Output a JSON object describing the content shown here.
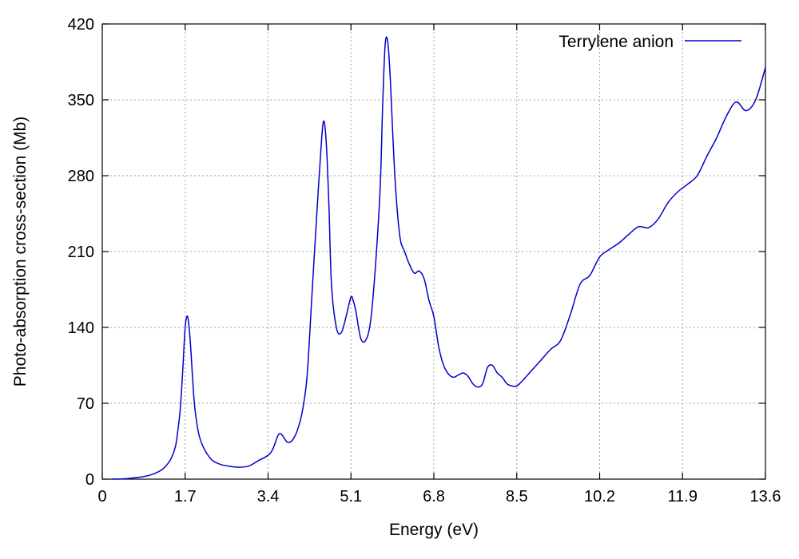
{
  "chart_data": {
    "type": "line",
    "title": "",
    "xlabel": "Energy (eV)",
    "ylabel": "Photo-absorption cross-section (Mb)",
    "xlim": [
      0,
      13.6
    ],
    "ylim": [
      0,
      420
    ],
    "xticks": [
      0,
      1.7,
      3.4,
      5.1,
      6.8,
      8.5,
      10.2,
      11.9,
      13.6
    ],
    "xtick_labels": [
      "0",
      "1.7",
      "3.4",
      "5.1",
      "6.8",
      "8.5",
      "10.2",
      "11.9",
      "13.6"
    ],
    "yticks": [
      0,
      70,
      140,
      210,
      280,
      350,
      420
    ],
    "ytick_labels": [
      "0",
      "70",
      "140",
      "210",
      "280",
      "350",
      "420"
    ],
    "grid": true,
    "legend_position": "top-right",
    "series": [
      {
        "name": "Terrylene anion",
        "color": "#0000cc",
        "x": [
          0.2,
          0.5,
          0.8,
          1.0,
          1.2,
          1.3,
          1.4,
          1.5,
          1.55,
          1.6,
          1.65,
          1.7,
          1.75,
          1.8,
          1.85,
          1.9,
          2.0,
          2.2,
          2.4,
          2.6,
          2.8,
          3.0,
          3.2,
          3.4,
          3.5,
          3.6,
          3.65,
          3.7,
          3.8,
          3.9,
          4.0,
          4.1,
          4.2,
          4.3,
          4.4,
          4.5,
          4.55,
          4.6,
          4.65,
          4.7,
          4.8,
          4.9,
          5.0,
          5.1,
          5.15,
          5.2,
          5.3,
          5.4,
          5.5,
          5.6,
          5.7,
          5.75,
          5.8,
          5.85,
          5.9,
          6.0,
          6.1,
          6.2,
          6.3,
          6.4,
          6.5,
          6.6,
          6.7,
          6.8,
          6.9,
          7.0,
          7.1,
          7.2,
          7.3,
          7.4,
          7.5,
          7.6,
          7.7,
          7.8,
          7.9,
          8.0,
          8.1,
          8.2,
          8.3,
          8.4,
          8.5,
          8.6,
          8.8,
          9.0,
          9.2,
          9.4,
          9.6,
          9.8,
          10.0,
          10.2,
          10.4,
          10.6,
          10.8,
          11.0,
          11.2,
          11.4,
          11.6,
          11.8,
          12.0,
          12.2,
          12.4,
          12.6,
          12.8,
          13.0,
          13.2,
          13.4,
          13.6
        ],
        "y": [
          0,
          0.5,
          2,
          4,
          8,
          12,
          18,
          30,
          45,
          65,
          100,
          140,
          150,
          130,
          95,
          65,
          38,
          20,
          14,
          12,
          11,
          12,
          17,
          22,
          28,
          40,
          42,
          40,
          34,
          36,
          45,
          62,
          95,
          170,
          245,
          315,
          330,
          305,
          250,
          180,
          140,
          135,
          150,
          168,
          164,
          155,
          130,
          128,
          145,
          195,
          270,
          345,
          400,
          405,
          375,
          280,
          225,
          210,
          198,
          190,
          192,
          185,
          165,
          150,
          122,
          105,
          97,
          94,
          96,
          98,
          95,
          88,
          85,
          88,
          103,
          105,
          98,
          94,
          88,
          86,
          86,
          90,
          100,
          110,
          120,
          128,
          152,
          180,
          188,
          205,
          212,
          218,
          226,
          233,
          232,
          240,
          255,
          265,
          272,
          280,
          298,
          315,
          335,
          348,
          340,
          350,
          380
        ]
      }
    ]
  }
}
